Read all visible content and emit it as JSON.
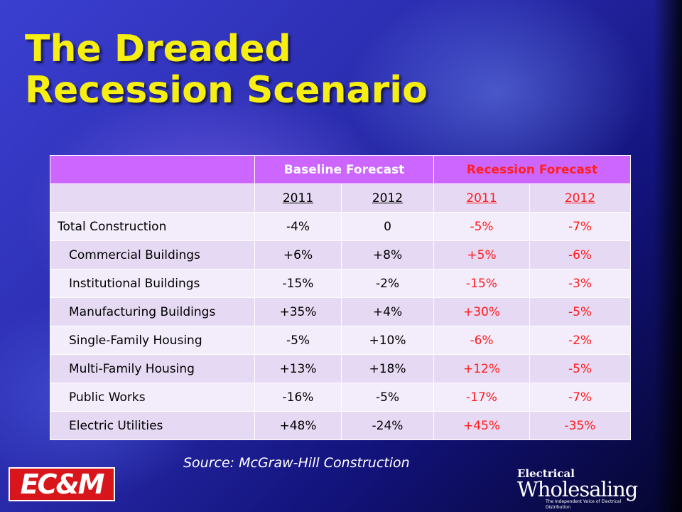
{
  "title": {
    "line1": "The Dreaded",
    "line2": "Recession Scenario"
  },
  "table": {
    "group_headers": {
      "baseline": "Baseline Forecast",
      "recession": "Recession Forecast"
    },
    "years": [
      "2011",
      "2012",
      "2011",
      "2012"
    ],
    "rows": [
      {
        "label": "Total Construction",
        "values": [
          "-4%",
          "0",
          "-5%",
          "-7%"
        ]
      },
      {
        "label": "Commercial Buildings",
        "values": [
          "+6%",
          "+8%",
          "+5%",
          "-6%"
        ]
      },
      {
        "label": "Institutional Buildings",
        "values": [
          "-15%",
          "-2%",
          "-15%",
          "-3%"
        ]
      },
      {
        "label": "Manufacturing Buildings",
        "values": [
          "+35%",
          "+4%",
          "+30%",
          "-5%"
        ]
      },
      {
        "label": "Single-Family Housing",
        "values": [
          "-5%",
          "+10%",
          "-6%",
          "-2%"
        ]
      },
      {
        "label": "Multi-Family Housing",
        "values": [
          "+13%",
          "+18%",
          "+12%",
          "-5%"
        ]
      },
      {
        "label": "Public Works",
        "values": [
          "-16%",
          "-5%",
          "-17%",
          "-7%"
        ]
      },
      {
        "label": "Electric Utilities",
        "values": [
          "+48%",
          "-24%",
          "+45%",
          "-35%"
        ]
      }
    ]
  },
  "source": "Source: McGraw-Hill Construction",
  "logos": {
    "left": "EC&M",
    "right_top": "Electrical",
    "right_main": "Wholesaling",
    "right_tagline": "The Independent Voice of Electrical Distribution"
  },
  "colors": {
    "title": "#f7ef14",
    "header_bg": "#cc66ff",
    "recession_text": "#ff1a1a",
    "row_light": "#f3ecfb",
    "row_dark": "#e6d9f3"
  }
}
